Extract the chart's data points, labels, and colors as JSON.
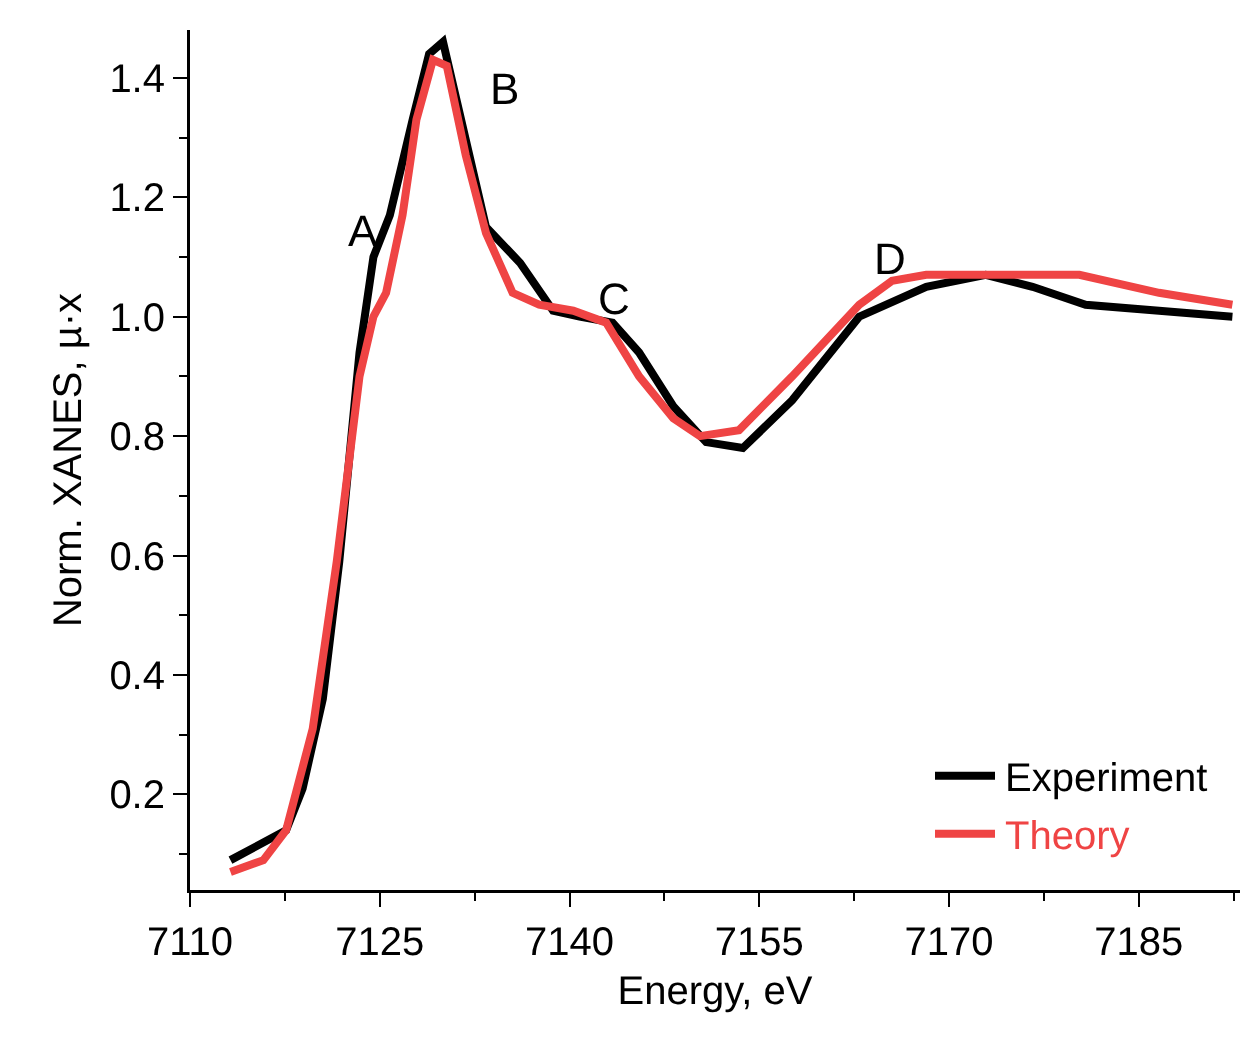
{
  "chart_data": {
    "type": "line",
    "xlabel": "Energy, eV",
    "ylabel": "Norm. XANES, µ·x",
    "xlim": [
      7110,
      7193
    ],
    "xticks": [
      7110,
      7125,
      7140,
      7155,
      7170,
      7185
    ],
    "ylim": [
      0.04,
      1.48
    ],
    "yticks": [
      0.2,
      0.4,
      0.6,
      0.8,
      {
        "value": 1,
        "label": "1.0"
      },
      1.2,
      1.4
    ],
    "grid": false,
    "legend": "bottom right",
    "marker": "none",
    "line_style": "solid",
    "series": [
      {
        "name": "Experiment",
        "color": "#000000",
        "x": [
          7113.2,
          7117.6,
          7118.9,
          7120.5,
          7121.8,
          7123.4,
          7124.5,
          7125.8,
          7127.6,
          7128.9,
          7130.0,
          7131.1,
          7133.4,
          7136.1,
          7138.7,
          7140.8,
          7143.4,
          7145.5,
          7148.2,
          7150.8,
          7153.7,
          7157.6,
          7162.9,
          7168.2,
          7172.9,
          7176.6,
          7180.8,
          7186.6,
          7192.4
        ],
        "values": [
          0.09,
          0.14,
          0.21,
          0.36,
          0.59,
          0.94,
          1.1,
          1.17,
          1.33,
          1.44,
          1.46,
          1.36,
          1.15,
          1.09,
          1.01,
          1.0,
          0.99,
          0.94,
          0.85,
          0.79,
          0.78,
          0.86,
          1.0,
          1.05,
          1.07,
          1.05,
          1.02,
          1.01,
          1.0
        ]
      },
      {
        "name": "Theory",
        "color": "#ef4444",
        "x": [
          7113.2,
          7115.8,
          7117.6,
          7119.7,
          7121.6,
          7123.4,
          7124.5,
          7125.5,
          7126.8,
          7127.9,
          7129.2,
          7130.3,
          7131.8,
          7133.4,
          7135.5,
          7137.6,
          7140.3,
          7142.9,
          7145.5,
          7148.2,
          7150.3,
          7153.4,
          7157.6,
          7162.9,
          7165.5,
          7168.2,
          7172.9,
          7180.3,
          7186.6,
          7192.4
        ],
        "values": [
          0.07,
          0.09,
          0.14,
          0.31,
          0.59,
          0.9,
          1.0,
          1.04,
          1.17,
          1.33,
          1.43,
          1.42,
          1.27,
          1.14,
          1.04,
          1.02,
          1.01,
          0.99,
          0.9,
          0.83,
          0.8,
          0.81,
          0.9,
          1.02,
          1.06,
          1.07,
          1.07,
          1.07,
          1.04,
          1.02
        ]
      }
    ],
    "annotations": [
      "A",
      "B",
      "C",
      "D"
    ]
  }
}
